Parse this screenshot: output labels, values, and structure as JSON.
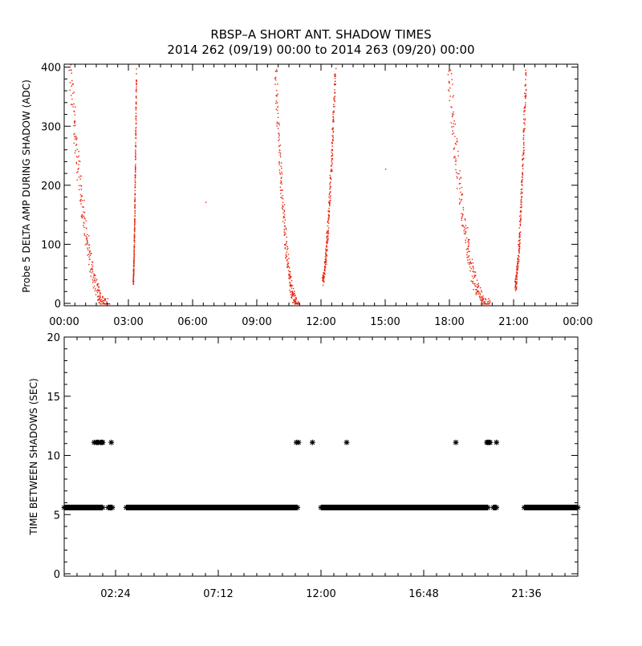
{
  "title_line1": "RBSP–A SHORT ANT. SHADOW TIMES",
  "title_line2": "2014 262 (09/19) 00:00 to 2014 263 (09/20) 00:00",
  "chart_data": [
    {
      "type": "scatter",
      "ylabel": "Probe 5 DELTA AMP DURING SHADOW (ADC)",
      "xlim_hours": [
        0,
        24
      ],
      "ylim": [
        0,
        405
      ],
      "x_tick_labels": [
        "00:00",
        "03:00",
        "06:00",
        "09:00",
        "12:00",
        "15:00",
        "18:00",
        "21:00",
        "00:00"
      ],
      "y_tick_labels": [
        "0",
        "100",
        "200",
        "300",
        "400"
      ],
      "point_color": "#e8200a",
      "marker": "dot",
      "clusters": [
        {
          "name": "descending pass",
          "start_hour": 0.25,
          "end_hour": 2.0,
          "start_value": 400,
          "end_value": 0
        },
        {
          "name": "ascending pass",
          "start_hour": 3.2,
          "end_hour": 3.35,
          "start_value": 40,
          "end_value": 390
        },
        {
          "name": "descending pass",
          "start_hour": 9.85,
          "end_hour": 10.9,
          "start_value": 400,
          "end_value": 0
        },
        {
          "name": "ascending pass",
          "start_hour": 12.05,
          "end_hour": 12.65,
          "start_value": 40,
          "end_value": 395
        },
        {
          "name": "descending pass",
          "start_hour": 17.95,
          "end_hour": 19.8,
          "start_value": 400,
          "end_value": 0
        },
        {
          "name": "ascending pass",
          "start_hour": 21.05,
          "end_hour": 21.55,
          "start_value": 30,
          "end_value": 390
        }
      ],
      "isolated_points": [
        {
          "x_hour": 6.6,
          "y": 172
        },
        {
          "x_hour": 15.0,
          "y": 228
        }
      ]
    },
    {
      "type": "scatter",
      "ylabel": "TIME BETWEEN SHADOWS (SEC)",
      "xlim_hours": [
        0,
        24
      ],
      "ylim": [
        0,
        20
      ],
      "x_ticks_hours": [
        2.4,
        7.2,
        12.0,
        16.8,
        21.6
      ],
      "x_tick_labels": [
        "02:24",
        "07:12",
        "12:00",
        "16:48",
        "21:36"
      ],
      "y_ticks": [
        0,
        5,
        10,
        15,
        20
      ],
      "y_tick_labels": [
        "0",
        "5",
        "10",
        "15",
        "20"
      ],
      "point_color": "#000000",
      "marker": "asterisk",
      "baseline_value": 5.6,
      "baseline_segments_hours": [
        [
          0.0,
          1.8
        ],
        [
          2.05,
          2.25
        ],
        [
          2.9,
          10.9
        ],
        [
          12.0,
          19.8
        ],
        [
          20.05,
          20.2
        ],
        [
          21.5,
          24.0
        ]
      ],
      "upper_value": 11.1,
      "upper_points_hours": [
        1.4,
        1.5,
        1.55,
        1.6,
        1.7,
        1.75,
        1.8,
        2.2,
        10.85,
        10.95,
        11.6,
        13.2,
        18.3,
        19.75,
        19.8,
        19.85,
        19.9,
        20.2
      ]
    }
  ]
}
